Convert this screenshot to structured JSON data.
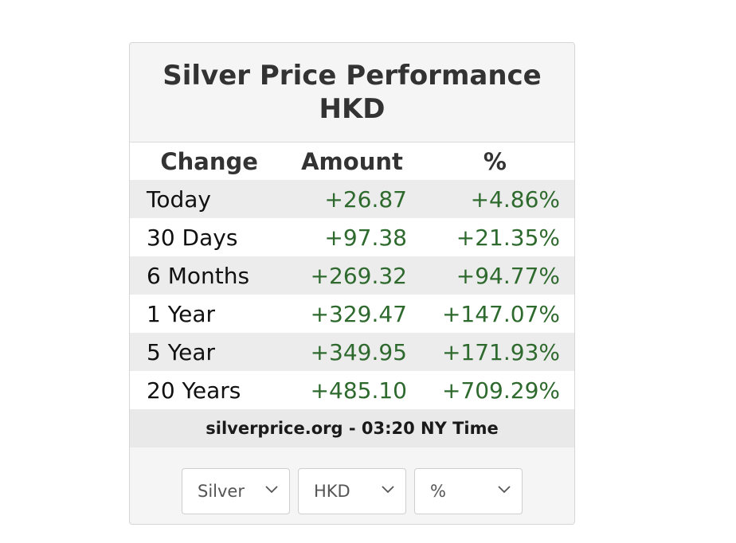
{
  "widget": {
    "title_line1": "Silver Price Performance",
    "title_line2": "HKD"
  },
  "table": {
    "headers": [
      "Change",
      "Amount",
      "%"
    ],
    "rows": [
      {
        "label": "Today",
        "amount": "+26.87",
        "pct": "+4.86%"
      },
      {
        "label": "30 Days",
        "amount": "+97.38",
        "pct": "+21.35%"
      },
      {
        "label": "6 Months",
        "amount": "+269.32",
        "pct": "+94.77%"
      },
      {
        "label": "1 Year",
        "amount": "+329.47",
        "pct": "+147.07%"
      },
      {
        "label": "5 Year",
        "amount": "+349.95",
        "pct": "+171.93%"
      },
      {
        "label": "20 Years",
        "amount": "+485.10",
        "pct": "+709.29%"
      }
    ]
  },
  "footer": {
    "source": "silverprice.org - 03:20 NY Time"
  },
  "controls": {
    "metal": "Silver",
    "currency": "HKD",
    "unit": "%"
  },
  "colors": {
    "positive": "#2e6a2e",
    "header_bg": "#f5f5f5",
    "row_alt": "#ececec"
  },
  "icons": {
    "dropdown": "chevron-down-icon"
  }
}
